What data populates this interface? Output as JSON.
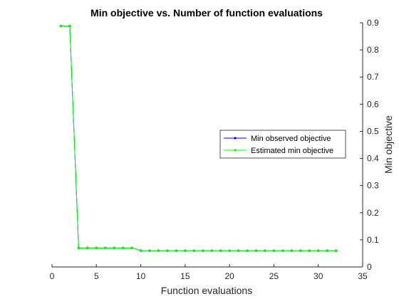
{
  "chart_data": {
    "type": "line",
    "title": "Min objective vs. Number of function evaluations",
    "xlabel": "Function evaluations",
    "ylabel": "Min objective",
    "xlim": [
      0,
      35
    ],
    "ylim": [
      0,
      0.9
    ],
    "xticks": [
      0,
      5,
      10,
      15,
      20,
      25,
      30,
      35
    ],
    "yticks": [
      0,
      0.1,
      0.2,
      0.3,
      0.4,
      0.5,
      0.6,
      0.7,
      0.8,
      0.9
    ],
    "y_axis_position": "right",
    "grid": false,
    "legend_position": "right",
    "x": [
      1,
      2,
      3,
      4,
      5,
      6,
      7,
      8,
      9,
      10,
      11,
      12,
      13,
      14,
      15,
      16,
      17,
      18,
      19,
      20,
      21,
      22,
      23,
      24,
      25,
      26,
      27,
      28,
      29,
      30,
      31,
      32
    ],
    "series": [
      {
        "name": "Min observed objective",
        "color": "#0000ff",
        "values": [
          0.888,
          0.888,
          0.07,
          0.07,
          0.07,
          0.07,
          0.07,
          0.07,
          0.07,
          0.06,
          0.06,
          0.06,
          0.06,
          0.06,
          0.06,
          0.06,
          0.06,
          0.06,
          0.06,
          0.06,
          0.06,
          0.06,
          0.06,
          0.06,
          0.06,
          0.06,
          0.06,
          0.06,
          0.06,
          0.06,
          0.06,
          0.06
        ]
      },
      {
        "name": "Estimated min objective",
        "color": "#00ff00",
        "values": [
          0.888,
          0.888,
          0.07,
          0.07,
          0.07,
          0.07,
          0.07,
          0.07,
          0.07,
          0.06,
          0.06,
          0.06,
          0.06,
          0.06,
          0.06,
          0.06,
          0.06,
          0.06,
          0.06,
          0.06,
          0.06,
          0.06,
          0.06,
          0.06,
          0.06,
          0.06,
          0.06,
          0.06,
          0.06,
          0.06,
          0.06,
          0.06
        ]
      }
    ]
  }
}
